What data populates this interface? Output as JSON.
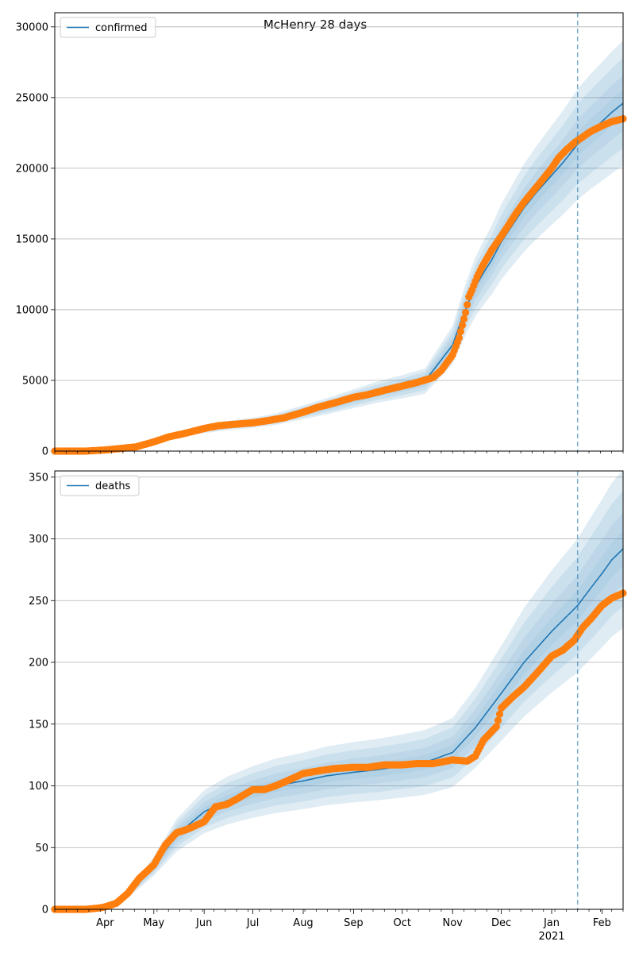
{
  "figure_title": "McHenry 28 days",
  "chart_data": [
    {
      "type": "line",
      "legend": "confirmed",
      "legend_position": "upper-left",
      "grid": "horizontal",
      "x_range": [
        "2020-03-01",
        "2021-02-14"
      ],
      "ylim": [
        0,
        31000
      ],
      "yticks": [
        0,
        5000,
        10000,
        15000,
        20000,
        25000,
        30000
      ],
      "forecast_start": "2021-01-17",
      "colors": {
        "model": "#1f77b4",
        "observed": "#ff7f0e",
        "band": "#1f77b4"
      },
      "model_series": {
        "name": "confirmed",
        "x": [
          "2020-03-01",
          "2020-03-15",
          "2020-04-01",
          "2020-04-15",
          "2020-05-01",
          "2020-05-15",
          "2020-06-01",
          "2020-06-15",
          "2020-07-01",
          "2020-07-15",
          "2020-08-01",
          "2020-08-15",
          "2020-09-01",
          "2020-09-15",
          "2020-10-01",
          "2020-10-15",
          "2020-11-01",
          "2020-11-05",
          "2020-11-10",
          "2020-11-15",
          "2020-11-20",
          "2020-11-25",
          "2020-12-01",
          "2020-12-08",
          "2020-12-15",
          "2020-12-22",
          "2021-01-01",
          "2021-01-08",
          "2021-01-17",
          "2021-01-25",
          "2021-02-01",
          "2021-02-07",
          "2021-02-14"
        ],
        "y": [
          0,
          20,
          100,
          300,
          700,
          1150,
          1550,
          1800,
          2000,
          2250,
          2750,
          3150,
          3700,
          4150,
          4550,
          4950,
          7500,
          8800,
          10300,
          11600,
          12600,
          13500,
          14800,
          16000,
          17200,
          18200,
          19500,
          20400,
          21700,
          22600,
          23300,
          23950,
          24600
        ],
        "band_halfwidths_pct": [
          4,
          8,
          13,
          18
        ]
      },
      "observed_points": {
        "x": [
          "2020-03-01",
          "2020-03-10",
          "2020-03-20",
          "2020-04-01",
          "2020-04-10",
          "2020-04-20",
          "2020-05-01",
          "2020-05-10",
          "2020-05-20",
          "2020-06-01",
          "2020-06-10",
          "2020-06-20",
          "2020-07-01",
          "2020-07-10",
          "2020-07-20",
          "2020-08-01",
          "2020-08-10",
          "2020-08-20",
          "2020-09-01",
          "2020-09-10",
          "2020-09-20",
          "2020-10-01",
          "2020-10-10",
          "2020-10-20",
          "2020-10-25",
          "2020-11-01",
          "2020-11-03",
          "2020-11-05",
          "2020-11-07",
          "2020-11-09",
          "2020-11-11",
          "2020-11-13",
          "2020-11-16",
          "2020-11-19",
          "2020-11-22",
          "2020-11-25",
          "2020-11-28",
          "2020-12-01",
          "2020-12-05",
          "2020-12-10",
          "2020-12-15",
          "2020-12-20",
          "2020-12-25",
          "2021-01-01",
          "2021-01-05",
          "2021-01-10",
          "2021-01-15",
          "2021-01-20",
          "2021-01-25",
          "2021-02-01",
          "2021-02-07",
          "2021-02-14"
        ],
        "y": [
          0,
          0,
          0,
          80,
          180,
          300,
          650,
          1000,
          1250,
          1600,
          1800,
          1900,
          2000,
          2150,
          2350,
          2750,
          3100,
          3400,
          3800,
          4000,
          4300,
          4600,
          4850,
          5200,
          5700,
          6800,
          7400,
          8000,
          8900,
          9800,
          10900,
          11400,
          12300,
          13000,
          13600,
          14200,
          14700,
          15200,
          15900,
          16800,
          17600,
          18300,
          19000,
          20000,
          20700,
          21300,
          21800,
          22200,
          22600,
          23000,
          23300,
          23500
        ]
      }
    },
    {
      "type": "line",
      "legend": "deaths",
      "legend_position": "upper-left",
      "grid": "horizontal",
      "x_range": [
        "2020-03-01",
        "2021-02-14"
      ],
      "ylim": [
        0,
        355
      ],
      "yticks": [
        0,
        50,
        100,
        150,
        200,
        250,
        300,
        350
      ],
      "forecast_start": "2021-01-17",
      "x_tick_labels": [
        "Apr",
        "May",
        "Jun",
        "Jul",
        "Aug",
        "Sep",
        "Oct",
        "Nov",
        "Dec",
        "Jan",
        "Feb"
      ],
      "x_tick_dates": [
        "2020-04-01",
        "2020-05-01",
        "2020-06-01",
        "2020-07-01",
        "2020-08-01",
        "2020-09-01",
        "2020-10-01",
        "2020-11-01",
        "2020-12-01",
        "2021-01-01",
        "2021-02-01"
      ],
      "x_year_label": "2021",
      "colors": {
        "model": "#1f77b4",
        "observed": "#ff7f0e",
        "band": "#1f77b4"
      },
      "model_series": {
        "name": "deaths",
        "x": [
          "2020-03-01",
          "2020-03-25",
          "2020-04-05",
          "2020-04-15",
          "2020-05-01",
          "2020-05-15",
          "2020-06-01",
          "2020-06-15",
          "2020-07-01",
          "2020-07-15",
          "2020-08-01",
          "2020-08-15",
          "2020-09-01",
          "2020-09-15",
          "2020-10-01",
          "2020-10-15",
          "2020-11-01",
          "2020-11-15",
          "2020-12-01",
          "2020-12-15",
          "2021-01-01",
          "2021-01-17",
          "2021-01-25",
          "2021-02-01",
          "2021-02-07",
          "2021-02-14"
        ],
        "y": [
          0,
          0,
          3,
          12,
          35,
          60,
          79,
          88,
          95,
          100,
          104,
          108,
          111,
          113,
          116,
          119,
          127,
          147,
          175,
          200,
          225,
          246,
          260,
          272,
          283,
          292
        ],
        "band_halfwidths_pct": [
          5,
          10,
          16,
          22
        ]
      },
      "observed_points": {
        "x": [
          "2020-03-01",
          "2020-03-20",
          "2020-03-28",
          "2020-04-01",
          "2020-04-08",
          "2020-04-15",
          "2020-04-22",
          "2020-05-01",
          "2020-05-08",
          "2020-05-15",
          "2020-05-22",
          "2020-06-01",
          "2020-06-08",
          "2020-06-15",
          "2020-06-22",
          "2020-07-01",
          "2020-07-08",
          "2020-07-15",
          "2020-07-22",
          "2020-08-01",
          "2020-08-10",
          "2020-08-20",
          "2020-09-01",
          "2020-09-10",
          "2020-09-20",
          "2020-10-01",
          "2020-10-10",
          "2020-10-20",
          "2020-11-01",
          "2020-11-10",
          "2020-11-15",
          "2020-11-20",
          "2020-11-28",
          "2020-12-01",
          "2020-12-08",
          "2020-12-15",
          "2020-12-22",
          "2021-01-01",
          "2021-01-08",
          "2021-01-15",
          "2021-01-20",
          "2021-01-25",
          "2021-02-01",
          "2021-02-07",
          "2021-02-14"
        ],
        "y": [
          0,
          0,
          1,
          2,
          5,
          13,
          25,
          36,
          52,
          62,
          65,
          71,
          83,
          85,
          90,
          97,
          97,
          100,
          104,
          110,
          112,
          114,
          115,
          115,
          117,
          117,
          118,
          118,
          121,
          120,
          124,
          137,
          148,
          163,
          172,
          180,
          190,
          205,
          210,
          218,
          228,
          235,
          246,
          252,
          256
        ]
      }
    }
  ]
}
